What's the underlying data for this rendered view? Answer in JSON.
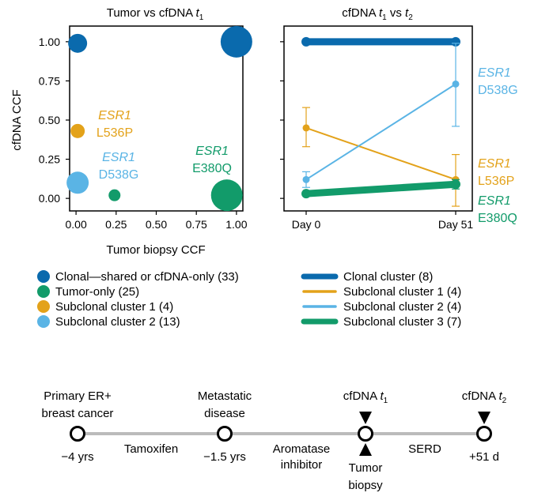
{
  "colors": {
    "clonal": "#0a6aad",
    "tumor_only": "#129b6a",
    "sub1": "#e3a21a",
    "sub2": "#5ab4e5",
    "timeline_line": "#bbbbbb",
    "axis": "#000000"
  },
  "chart_data": [
    {
      "type": "scatter",
      "title": "Tumor vs cfDNA",
      "title_var": "t",
      "title_sub": "1",
      "xlabel": "Tumor biopsy CCF",
      "ylabel": "cfDNA CCF",
      "xlim": [
        -0.04,
        1.04
      ],
      "ylim": [
        -0.08,
        1.1
      ],
      "xticks": [
        "0.00",
        "0.25",
        "0.50",
        "0.75",
        "1.00"
      ],
      "yticks": [
        "0.00",
        "0.25",
        "0.50",
        "0.75",
        "1.00"
      ],
      "grid": false,
      "points": [
        {
          "x": 0.01,
          "y": 0.99,
          "size": 1.2,
          "group": "clonal"
        },
        {
          "x": 1.0,
          "y": 1.0,
          "size": 2.0,
          "group": "clonal"
        },
        {
          "x": 0.01,
          "y": 0.43,
          "size": 0.9,
          "group": "sub1"
        },
        {
          "x": 0.01,
          "y": 0.1,
          "size": 1.4,
          "group": "sub2"
        },
        {
          "x": 0.24,
          "y": 0.02,
          "size": 0.75,
          "group": "tumor_only"
        },
        {
          "x": 0.94,
          "y": 0.02,
          "size": 2.0,
          "group": "tumor_only"
        }
      ],
      "annotations": [
        {
          "gene": "ESR1",
          "variant": "L536P",
          "group": "sub1"
        },
        {
          "gene": "ESR1",
          "variant": "D538G",
          "group": "sub2"
        },
        {
          "gene": "ESR1",
          "variant": "E380Q",
          "group": "tumor_only"
        }
      ],
      "legend": {
        "placement": "bottom",
        "entries": [
          {
            "label": "Clonal—shared or cfDNA-only (33)",
            "group": "clonal"
          },
          {
            "label": "Tumor-only (25)",
            "group": "tumor_only"
          },
          {
            "label": "Subclonal cluster 1 (4)",
            "group": "sub1"
          },
          {
            "label": "Subclonal cluster 2 (13)",
            "group": "sub2"
          }
        ]
      }
    },
    {
      "type": "line",
      "title": "cfDNA",
      "title_var1": "t",
      "title_sub1": "1",
      "title_mid": "vs",
      "title_var2": "t",
      "title_sub2": "2",
      "categories": [
        "Day 0",
        "Day 51"
      ],
      "ylim": [
        -0.08,
        1.1
      ],
      "series": [
        {
          "name": "Clonal cluster (8)",
          "group": "clonal",
          "values": [
            1.0,
            1.0
          ],
          "err_low": [
            1.0,
            1.0
          ],
          "err_high": [
            1.0,
            1.0
          ],
          "width": 9
        },
        {
          "name": "Subclonal cluster 1 (4)",
          "group": "sub1",
          "values": [
            0.45,
            0.12
          ],
          "err_low": [
            0.33,
            -0.05
          ],
          "err_high": [
            0.58,
            0.28
          ],
          "width": 2
        },
        {
          "name": "Subclonal cluster 2 (4)",
          "group": "sub2",
          "values": [
            0.12,
            0.73
          ],
          "err_low": [
            0.07,
            0.46
          ],
          "err_high": [
            0.17,
            0.99
          ],
          "width": 2
        },
        {
          "name": "Subclonal cluster 3 (7)",
          "group": "tumor_only",
          "values": [
            0.03,
            0.09
          ],
          "err_low": [
            0.03,
            0.06
          ],
          "err_high": [
            0.03,
            0.12
          ],
          "width": 9
        }
      ],
      "annotations": [
        {
          "gene": "ESR1",
          "variant": "D538G",
          "group": "sub2"
        },
        {
          "gene": "ESR1",
          "variant": "L536P",
          "group": "sub1"
        },
        {
          "gene": "ESR1",
          "variant": "E380Q",
          "group": "tumor_only"
        }
      ],
      "legend": {
        "placement": "bottom"
      }
    }
  ],
  "timeline": {
    "nodes": [
      {
        "label_lines": [
          "Primary ER+",
          "breast cancer"
        ],
        "time": "−4 yrs"
      },
      {
        "label_lines": [
          "Metastatic",
          "disease"
        ],
        "time": "−1.5 yrs"
      },
      {
        "label_var": "t",
        "label_sub": "1",
        "label_prefix": "cfDNA",
        "bottom_lines": [
          "Tumor",
          "biopsy"
        ]
      },
      {
        "label_var": "t",
        "label_sub": "2",
        "label_prefix": "cfDNA",
        "time": "+51 d"
      }
    ],
    "segments": [
      {
        "lines": [
          "Tamoxifen"
        ]
      },
      {
        "lines": [
          "Aromatase",
          "inhibitor"
        ]
      },
      {
        "lines": [
          "SERD"
        ]
      }
    ]
  }
}
